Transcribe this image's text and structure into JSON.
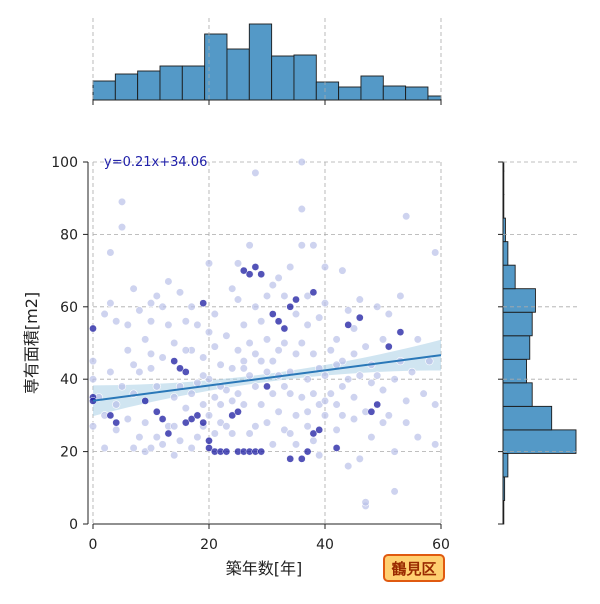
{
  "chart_data": {
    "type": "scatter",
    "xlabel": "築年数[年]",
    "ylabel": "専有面積[m2]",
    "xlim": [
      0,
      60
    ],
    "ylim": [
      0,
      100
    ],
    "x_ticks": [
      0,
      20,
      40,
      60
    ],
    "y_ticks": [
      0,
      20,
      40,
      60,
      80,
      100
    ],
    "grid": true,
    "regression": {
      "slope": 0.21,
      "intercept": 34.06,
      "label": "y=0.21x+34.06"
    },
    "badge": "鶴見区",
    "colors": {
      "points": "#b9c0e8",
      "points_dense": "#1a1aa0",
      "regression_line": "#2a78b8",
      "confidence_band": "#a9cfe6",
      "histogram": "#5499c7",
      "histogram_edge": "#1a1a1a",
      "grid": "#aaaaaa",
      "badge_fill": "#ffcf70",
      "badge_border": "#e05a10"
    },
    "marginal_x_histogram": {
      "bin_edges": [
        0,
        3.85,
        7.7,
        11.55,
        15.4,
        19.25,
        23.1,
        26.95,
        30.8,
        34.65,
        38.5,
        42.35,
        46.2,
        50.05,
        53.9,
        57.75,
        60
      ],
      "counts": [
        19,
        26,
        29,
        34,
        34,
        66,
        51,
        76,
        44,
        45,
        18,
        13,
        24,
        14,
        13,
        4
      ]
    },
    "marginal_y_histogram": {
      "bin_edges": [
        0,
        6.5,
        13,
        19.5,
        26,
        32.5,
        39,
        45.5,
        52,
        58.5,
        65,
        71.5,
        78,
        84.5,
        91,
        97.5,
        100
      ],
      "counts": [
        1,
        2,
        6,
        90,
        60,
        36,
        29,
        33,
        36,
        40,
        15,
        6,
        3,
        1,
        1,
        1
      ]
    },
    "points_dense": [
      [
        0,
        54
      ],
      [
        0,
        35
      ],
      [
        0,
        34
      ],
      [
        3,
        30
      ],
      [
        4,
        28
      ],
      [
        9,
        34
      ],
      [
        11,
        31
      ],
      [
        12,
        29
      ],
      [
        13,
        25
      ],
      [
        14,
        45
      ],
      [
        15,
        43
      ],
      [
        16,
        42
      ],
      [
        16,
        28
      ],
      [
        17,
        29
      ],
      [
        18,
        30
      ],
      [
        19,
        61
      ],
      [
        19,
        28
      ],
      [
        20,
        23
      ],
      [
        20,
        21
      ],
      [
        21,
        20
      ],
      [
        22,
        20
      ],
      [
        23,
        20
      ],
      [
        24,
        30
      ],
      [
        25,
        31
      ],
      [
        25,
        20
      ],
      [
        26,
        20
      ],
      [
        26,
        70
      ],
      [
        27,
        69
      ],
      [
        27,
        20
      ],
      [
        28,
        20
      ],
      [
        28,
        71
      ],
      [
        29,
        69
      ],
      [
        29,
        20
      ],
      [
        30,
        38
      ],
      [
        31,
        58
      ],
      [
        32,
        56
      ],
      [
        33,
        54
      ],
      [
        34,
        18
      ],
      [
        34,
        60
      ],
      [
        35,
        62
      ],
      [
        36,
        18
      ],
      [
        37,
        20
      ],
      [
        38,
        25
      ],
      [
        38,
        64
      ],
      [
        39,
        26
      ],
      [
        42,
        21
      ],
      [
        44,
        55
      ],
      [
        46,
        57
      ],
      [
        48,
        31
      ],
      [
        49,
        33
      ],
      [
        51,
        49
      ],
      [
        53,
        53
      ]
    ],
    "points": [
      [
        0,
        27
      ],
      [
        0,
        40
      ],
      [
        0,
        45
      ],
      [
        1,
        35
      ],
      [
        2,
        30
      ],
      [
        2,
        21
      ],
      [
        2,
        58
      ],
      [
        3,
        61
      ],
      [
        3,
        75
      ],
      [
        3,
        42
      ],
      [
        4,
        26
      ],
      [
        4,
        33
      ],
      [
        4,
        56
      ],
      [
        5,
        82
      ],
      [
        5,
        89
      ],
      [
        5,
        38
      ],
      [
        6,
        55
      ],
      [
        6,
        29
      ],
      [
        6,
        48
      ],
      [
        7,
        21
      ],
      [
        7,
        36
      ],
      [
        7,
        65
      ],
      [
        8,
        24
      ],
      [
        8,
        59
      ],
      [
        8,
        42
      ],
      [
        9,
        20
      ],
      [
        9,
        28
      ],
      [
        9,
        51
      ],
      [
        10,
        21
      ],
      [
        10,
        43
      ],
      [
        10,
        56
      ],
      [
        10,
        61
      ],
      [
        11,
        24
      ],
      [
        11,
        38
      ],
      [
        11,
        63
      ],
      [
        12,
        22
      ],
      [
        12,
        46
      ],
      [
        12,
        60
      ],
      [
        13,
        27
      ],
      [
        13,
        55
      ],
      [
        13,
        67
      ],
      [
        14,
        19
      ],
      [
        14,
        35
      ],
      [
        14,
        50
      ],
      [
        15,
        23
      ],
      [
        15,
        64
      ],
      [
        15,
        38
      ],
      [
        16,
        32
      ],
      [
        16,
        56
      ],
      [
        17,
        21
      ],
      [
        17,
        48
      ],
      [
        17,
        60
      ],
      [
        18,
        24
      ],
      [
        18,
        39
      ],
      [
        18,
        55
      ],
      [
        19,
        27
      ],
      [
        19,
        33
      ],
      [
        19,
        46
      ],
      [
        20,
        72
      ],
      [
        20,
        30
      ],
      [
        20,
        40
      ],
      [
        20,
        53
      ],
      [
        21,
        25
      ],
      [
        21,
        49
      ],
      [
        21,
        35
      ],
      [
        22,
        28
      ],
      [
        22,
        44
      ],
      [
        22,
        33
      ],
      [
        23,
        37
      ],
      [
        23,
        27
      ],
      [
        23,
        52
      ],
      [
        24,
        65
      ],
      [
        24,
        43
      ],
      [
        24,
        25
      ],
      [
        25,
        72
      ],
      [
        25,
        48
      ],
      [
        25,
        36
      ],
      [
        25,
        62
      ],
      [
        26,
        45
      ],
      [
        26,
        55
      ],
      [
        26,
        33
      ],
      [
        27,
        25
      ],
      [
        27,
        41
      ],
      [
        27,
        50
      ],
      [
        27,
        77
      ],
      [
        28,
        97
      ],
      [
        28,
        60
      ],
      [
        28,
        38
      ],
      [
        28,
        27
      ],
      [
        29,
        45
      ],
      [
        29,
        33
      ],
      [
        29,
        56
      ],
      [
        30,
        63
      ],
      [
        30,
        42
      ],
      [
        30,
        28
      ],
      [
        30,
        51
      ],
      [
        31,
        66
      ],
      [
        31,
        36
      ],
      [
        31,
        45
      ],
      [
        32,
        48
      ],
      [
        32,
        31
      ],
      [
        32,
        41
      ],
      [
        32,
        68
      ],
      [
        33,
        38
      ],
      [
        33,
        26
      ],
      [
        33,
        50
      ],
      [
        34,
        42
      ],
      [
        34,
        36
      ],
      [
        34,
        71
      ],
      [
        35,
        30
      ],
      [
        35,
        47
      ],
      [
        35,
        22
      ],
      [
        35,
        58
      ],
      [
        36,
        87
      ],
      [
        36,
        77
      ],
      [
        36,
        50
      ],
      [
        36,
        35
      ],
      [
        36,
        100
      ],
      [
        37,
        40
      ],
      [
        37,
        31
      ],
      [
        37,
        55
      ],
      [
        37,
        63
      ],
      [
        38,
        77
      ],
      [
        38,
        47
      ],
      [
        38,
        36
      ],
      [
        38,
        23
      ],
      [
        39,
        19
      ],
      [
        39,
        43
      ],
      [
        39,
        33
      ],
      [
        39,
        57
      ],
      [
        40,
        71
      ],
      [
        40,
        41
      ],
      [
        40,
        30
      ],
      [
        40,
        61
      ],
      [
        41,
        48
      ],
      [
        41,
        36
      ],
      [
        42,
        51
      ],
      [
        42,
        33
      ],
      [
        42,
        26
      ],
      [
        43,
        70
      ],
      [
        43,
        45
      ],
      [
        43,
        38
      ],
      [
        44,
        59
      ],
      [
        44,
        16
      ],
      [
        44,
        40
      ],
      [
        45,
        54
      ],
      [
        45,
        35
      ],
      [
        45,
        29
      ],
      [
        46,
        41
      ],
      [
        46,
        62
      ],
      [
        46,
        18
      ],
      [
        47,
        5
      ],
      [
        47,
        6
      ],
      [
        47,
        31
      ],
      [
        47,
        49
      ],
      [
        48,
        39
      ],
      [
        48,
        24
      ],
      [
        49,
        60
      ],
      [
        49,
        41
      ],
      [
        50,
        28
      ],
      [
        50,
        51
      ],
      [
        50,
        37
      ],
      [
        51,
        30
      ],
      [
        51,
        58
      ],
      [
        52,
        40
      ],
      [
        52,
        20
      ],
      [
        52,
        9
      ],
      [
        53,
        63
      ],
      [
        53,
        45
      ],
      [
        54,
        85
      ],
      [
        54,
        34
      ],
      [
        54,
        28
      ],
      [
        55,
        42
      ],
      [
        56,
        24
      ],
      [
        56,
        51
      ],
      [
        57,
        36
      ],
      [
        58,
        45
      ],
      [
        59,
        33
      ],
      [
        59,
        75
      ],
      [
        59,
        22
      ],
      [
        26,
        43
      ],
      [
        31,
        22
      ],
      [
        22,
        38
      ],
      [
        17,
        36
      ],
      [
        33,
        63
      ],
      [
        42,
        44
      ],
      [
        14,
        27
      ],
      [
        10,
        47
      ],
      [
        7,
        44
      ],
      [
        45,
        47
      ],
      [
        34,
        25
      ],
      [
        28,
        47
      ],
      [
        21,
        58
      ],
      [
        37,
        27
      ],
      [
        24,
        34
      ],
      [
        19,
        41
      ],
      [
        16,
        48
      ],
      [
        40,
        34
      ],
      [
        48,
        44
      ],
      [
        43,
        30
      ]
    ]
  }
}
